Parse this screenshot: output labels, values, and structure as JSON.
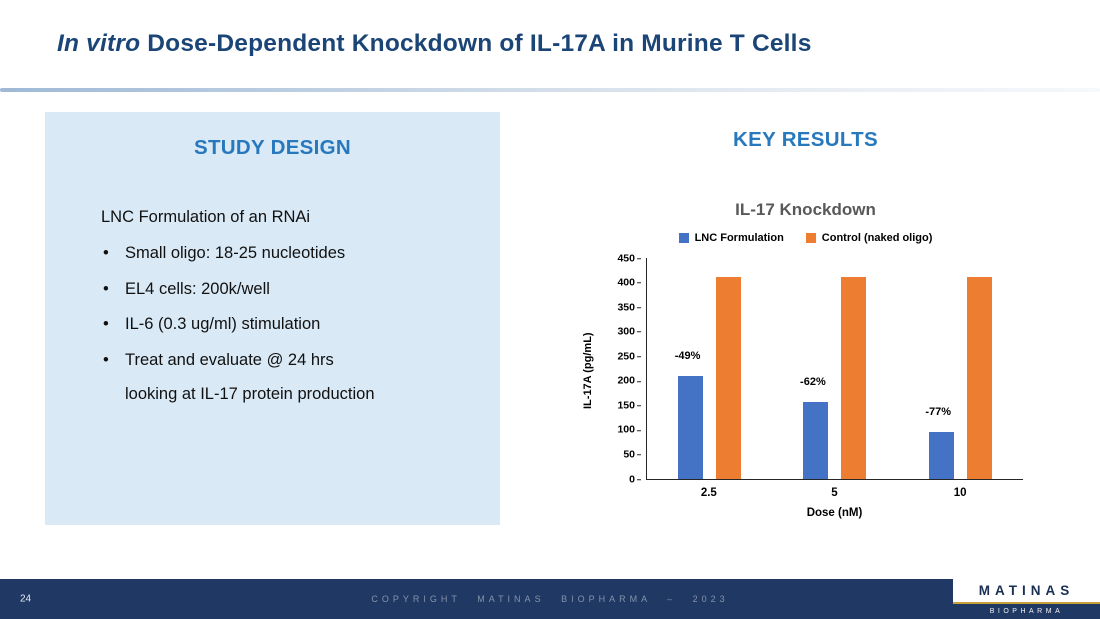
{
  "slide": {
    "title_italic": "In vitro",
    "title_rest": " Dose-Dependent Knockdown of IL-17A in Murine T Cells"
  },
  "study_design": {
    "heading": "STUDY DESIGN",
    "intro": "LNC Formulation of an RNAi",
    "bullets": [
      "Small oligo:  18-25 nucleotides",
      "EL4 cells: 200k/well",
      "IL-6 (0.3 ug/ml) stimulation",
      "Treat and evaluate @ 24 hrs"
    ],
    "continuation": "looking at IL-17 protein production"
  },
  "key_results": {
    "heading": "KEY RESULTS"
  },
  "chart_data": {
    "type": "bar",
    "title": "IL-17 Knockdown",
    "categories": [
      "2.5",
      "5",
      "10"
    ],
    "series": [
      {
        "name": "LNC Formulation",
        "color": "#4472c4",
        "values": [
          210,
          157,
          95
        ],
        "annotations": [
          "-49%",
          "-62%",
          "-77%"
        ]
      },
      {
        "name": "Control (naked oligo)",
        "color": "#ed7d31",
        "values": [
          412,
          412,
          412
        ]
      }
    ],
    "xlabel": "Dose  (nM)",
    "ylabel": "IL-17A (pg/mL)",
    "ylim": [
      0,
      450
    ],
    "ytick_step": 50,
    "legend_position": "top",
    "grid": false
  },
  "footer": {
    "page_number": "24",
    "copyright": "COPYRIGHT MATINAS BIOPHARMA – 2023",
    "logo_primary": "MATINAS",
    "logo_secondary": "BIOPHARMA"
  },
  "colors": {
    "title_navy": "#1b4577",
    "heading_blue": "#2878be",
    "panel_blue": "#d9e9f5",
    "bar_blue": "#4472c4",
    "bar_orange": "#ed7d31",
    "footer_navy": "#203864",
    "logo_gold": "#c9a13b",
    "chart_title_gray": "#595959"
  }
}
